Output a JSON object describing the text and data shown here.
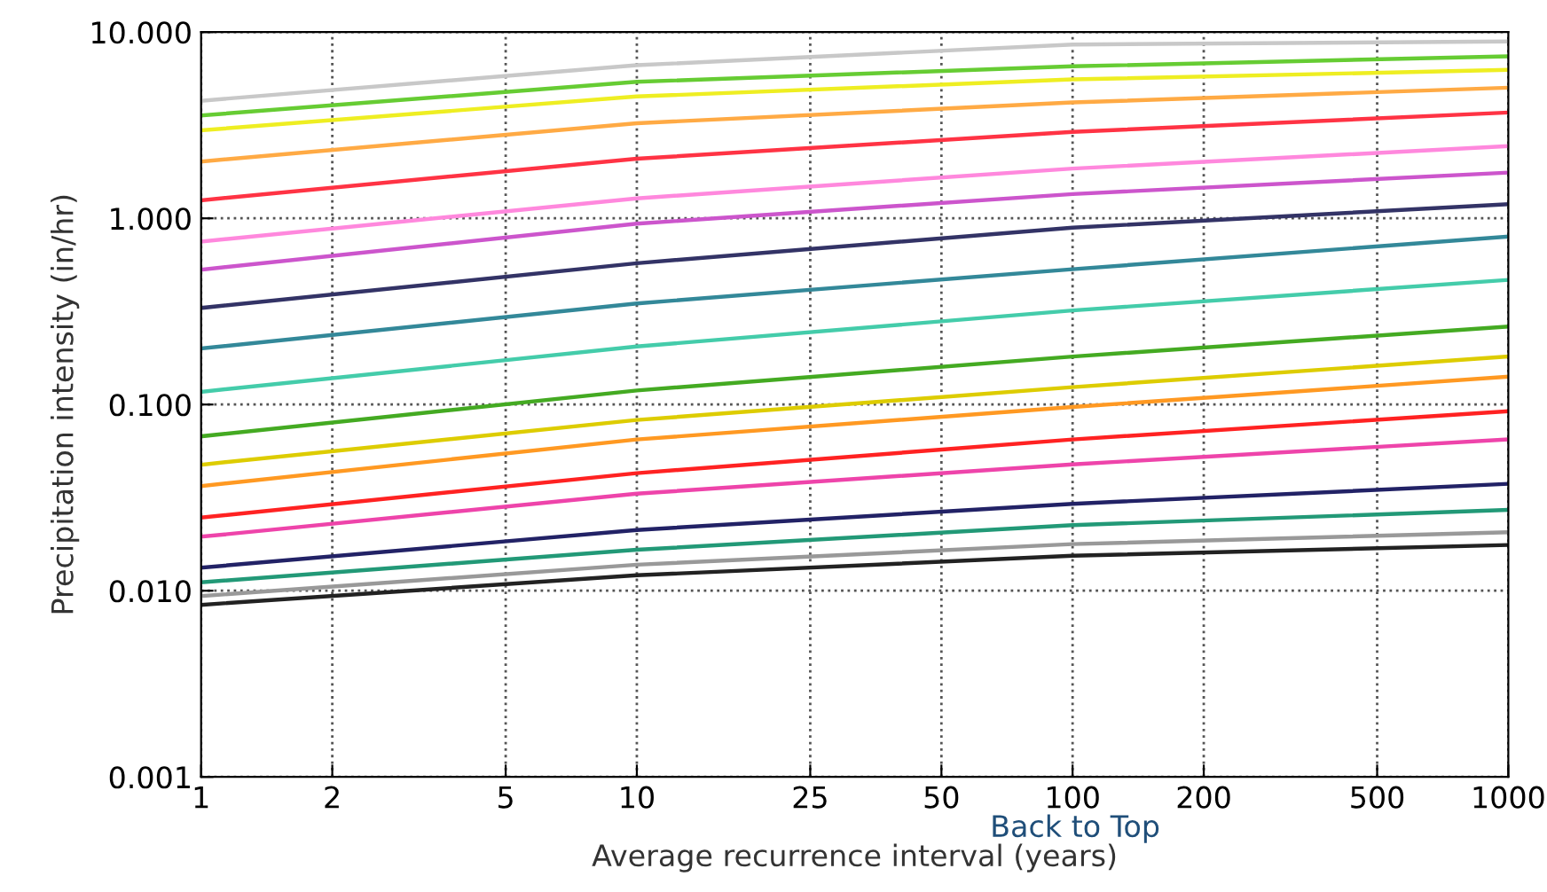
{
  "chart_data": {
    "type": "line",
    "xlabel": "Average recurrence interval (years)",
    "ylabel": "Precipitation intensity (in/hr)",
    "log": "xy",
    "grid": true,
    "xlim": [
      1,
      1000
    ],
    "ylim": [
      0.001,
      10
    ],
    "xticks": [
      1,
      2,
      5,
      10,
      25,
      50,
      100,
      200,
      500,
      1000
    ],
    "yticks": [
      {
        "value": 0.001,
        "label": "0.001"
      },
      {
        "value": 0.01,
        "label": "0.010"
      },
      {
        "value": 0.1,
        "label": "0.100"
      },
      {
        "value": 1,
        "label": "1.000"
      },
      {
        "value": 10,
        "label": "10.000"
      }
    ],
    "x": [
      1,
      10,
      100,
      1000
    ],
    "series": [
      {
        "color": "#c8c8c8",
        "values": [
          4.28,
          6.64,
          8.58,
          8.9
        ]
      },
      {
        "color": "#66cc33",
        "values": [
          3.57,
          5.41,
          6.55,
          7.41
        ]
      },
      {
        "color": "#eeee22",
        "values": [
          2.97,
          4.51,
          5.57,
          6.27
        ]
      },
      {
        "color": "#ffaa44",
        "values": [
          2.02,
          3.24,
          4.19,
          5.03
        ]
      },
      {
        "color": "#ff3344",
        "values": [
          1.25,
          2.09,
          2.91,
          3.7
        ]
      },
      {
        "color": "#ff88dd",
        "values": [
          0.75,
          1.28,
          1.85,
          2.44
        ]
      },
      {
        "color": "#cc55cc",
        "values": [
          0.53,
          0.936,
          1.35,
          1.76
        ]
      },
      {
        "color": "#333366",
        "values": [
          0.33,
          0.574,
          0.891,
          1.19
        ]
      },
      {
        "color": "#338899",
        "values": [
          0.2,
          0.349,
          0.533,
          0.798
        ]
      },
      {
        "color": "#44ccaa",
        "values": [
          0.117,
          0.205,
          0.32,
          0.467
        ]
      },
      {
        "color": "#44aa22",
        "values": [
          0.0675,
          0.119,
          0.181,
          0.262
        ]
      },
      {
        "color": "#ddcc00",
        "values": [
          0.0475,
          0.0826,
          0.124,
          0.181
        ]
      },
      {
        "color": "#ff9922",
        "values": [
          0.0365,
          0.0649,
          0.097,
          0.141
        ]
      },
      {
        "color": "#ff2222",
        "values": [
          0.0247,
          0.0428,
          0.0649,
          0.092
        ]
      },
      {
        "color": "#ee44aa",
        "values": [
          0.0195,
          0.0332,
          0.0477,
          0.065
        ]
      },
      {
        "color": "#222266",
        "values": [
          0.0133,
          0.0212,
          0.0293,
          0.0375
        ]
      },
      {
        "color": "#229977",
        "values": [
          0.0111,
          0.0166,
          0.0225,
          0.0272
        ]
      },
      {
        "color": "#999999",
        "values": [
          0.00936,
          0.0138,
          0.0178,
          0.0206
        ]
      },
      {
        "color": "#222222",
        "values": [
          0.0084,
          0.0121,
          0.0154,
          0.0176
        ]
      }
    ],
    "annotations": [
      "Back to Top"
    ]
  }
}
